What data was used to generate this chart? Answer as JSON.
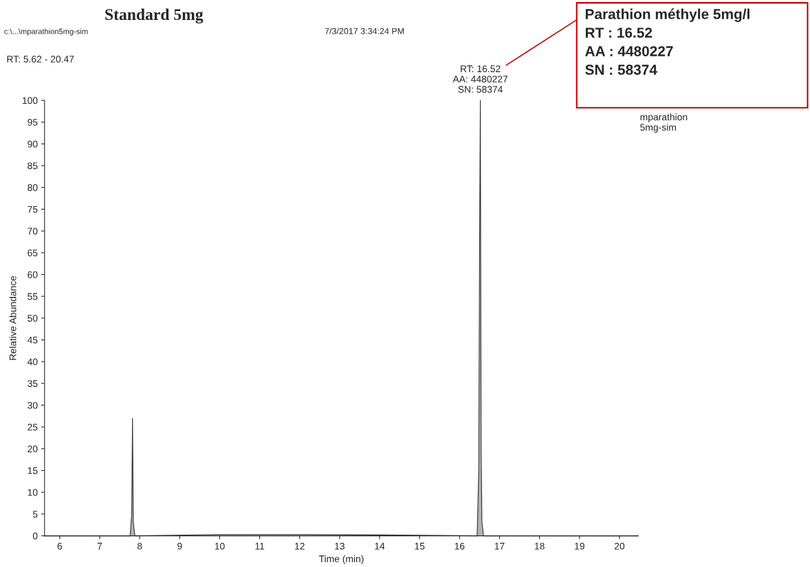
{
  "chart_data": {
    "type": "area",
    "title": "Standard 5mg",
    "xlabel": "Time (min)",
    "ylabel": "Relative Abundance",
    "x": [
      5.62,
      7.76,
      7.8,
      7.82,
      7.84,
      7.88,
      10.0,
      12.0,
      14.0,
      16.44,
      16.48,
      16.5,
      16.52,
      16.54,
      16.56,
      16.6,
      20.47
    ],
    "series": [
      {
        "color": "#808080",
        "values": [
          0,
          0,
          5,
          27,
          3,
          0,
          0.3,
          0.3,
          0.2,
          0,
          15,
          65,
          100,
          20,
          3,
          0,
          0
        ]
      }
    ],
    "xlim": [
      5.62,
      20.47
    ],
    "xticks": [
      6,
      7,
      8,
      9,
      10,
      11,
      12,
      13,
      14,
      15,
      16,
      17,
      18,
      19,
      20
    ],
    "ylim": [
      0,
      100
    ],
    "yticks": [
      0,
      5,
      10,
      15,
      20,
      25,
      30,
      35,
      40,
      45,
      50,
      55,
      60,
      65,
      70,
      75,
      80,
      85,
      90,
      95,
      100
    ],
    "grid": false,
    "annotations": [
      "c:\\...\\mparathion5mg-sim",
      "7/3/2017 3:34:24 PM",
      "RT: 5.62 - 20.47",
      {
        "text": "RT: 16.52\nAA: 4480227\nSN: 58374",
        "x": 16.52,
        "y": 100
      },
      "mparathion\n5mg-sim",
      "Parathion méthyle 5mg/l\nRT : 16.52\nAA : 4480227\nSN : 58374"
    ]
  }
}
